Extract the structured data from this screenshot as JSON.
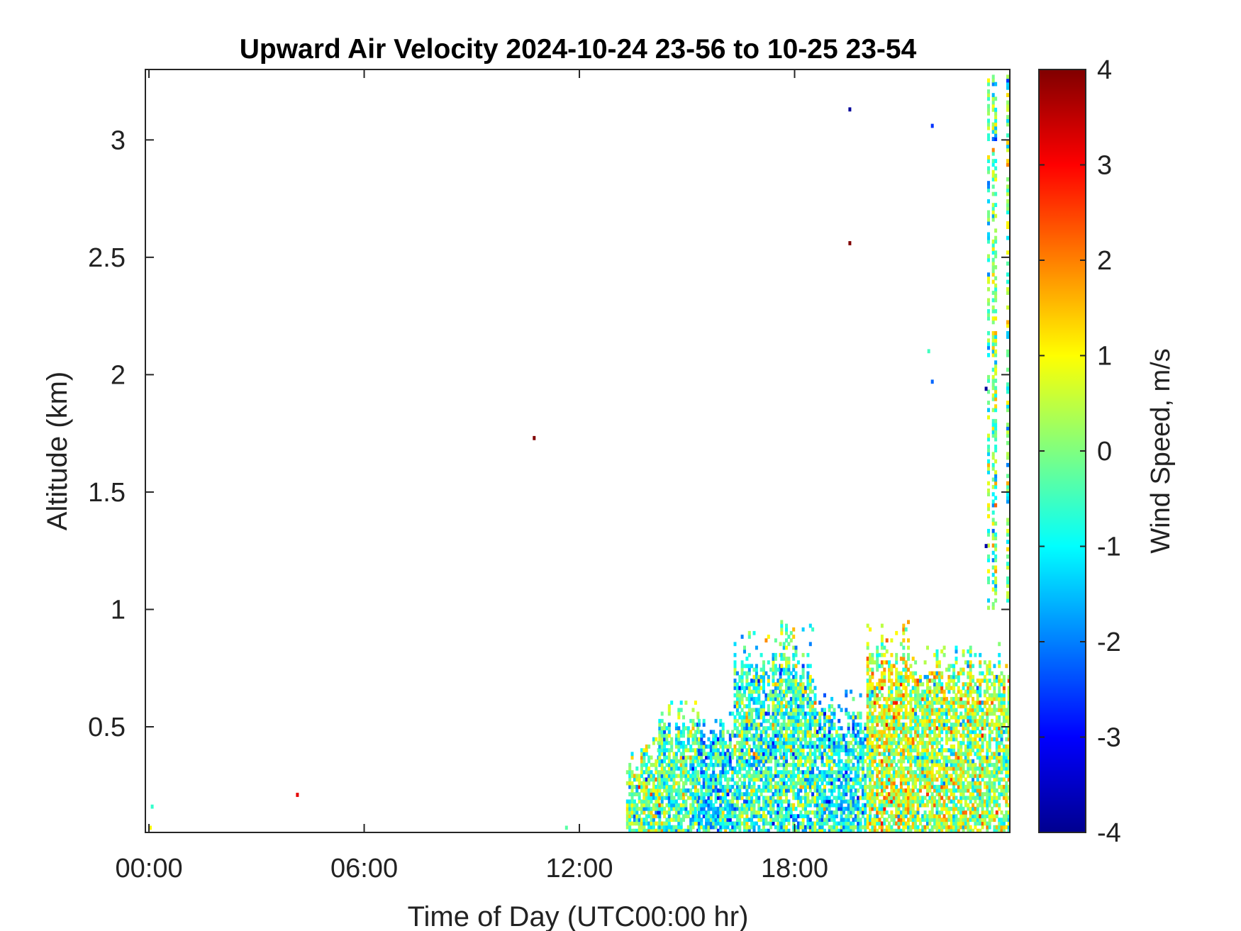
{
  "chart_data": {
    "type": "heatmap",
    "title": "Upward Air Velocity 2024-10-24 23-56 to 10-25 23-54",
    "xlabel": "Time of Day (UTC00:00 hr)",
    "ylabel": "Altitude (km)",
    "colorbar_label": "Wind Speed, m/s",
    "xlim": [
      -0.1,
      24.0
    ],
    "ylim": [
      0.05,
      3.3
    ],
    "clim": [
      -4,
      4
    ],
    "colormap": "jet",
    "x_ticks": [
      {
        "value": 0,
        "label": "00:00"
      },
      {
        "value": 6,
        "label": "06:00"
      },
      {
        "value": 12,
        "label": "12:00"
      },
      {
        "value": 18,
        "label": "18:00"
      }
    ],
    "y_ticks": [
      {
        "value": 0.5,
        "label": "0.5"
      },
      {
        "value": 1,
        "label": "1"
      },
      {
        "value": 1.5,
        "label": "1.5"
      },
      {
        "value": 2,
        "label": "2"
      },
      {
        "value": 2.5,
        "label": "2.5"
      },
      {
        "value": 3,
        "label": "3"
      }
    ],
    "colorbar_ticks": [
      {
        "value": 4,
        "label": "4"
      },
      {
        "value": 3,
        "label": "3"
      },
      {
        "value": 2,
        "label": "2"
      },
      {
        "value": 1,
        "label": "1"
      },
      {
        "value": 0,
        "label": "0"
      },
      {
        "value": -1,
        "label": "-1"
      },
      {
        "value": -2,
        "label": "-2"
      },
      {
        "value": -3,
        "label": "-3"
      },
      {
        "value": -4,
        "label": "-4"
      }
    ],
    "grid": false,
    "isolated_points": [
      {
        "time": 0.0,
        "altitude": 0.07,
        "value": 1.0
      },
      {
        "time": 0.05,
        "altitude": 0.16,
        "value": -0.6
      },
      {
        "time": 4.1,
        "altitude": 0.21,
        "value": 3.2
      },
      {
        "time": 10.7,
        "altitude": 1.73,
        "value": 4.0
      },
      {
        "time": 11.6,
        "altitude": 0.07,
        "value": -0.3
      },
      {
        "time": 19.5,
        "altitude": 3.13,
        "value": -3.8
      },
      {
        "time": 19.5,
        "altitude": 2.56,
        "value": 4.0
      },
      {
        "time": 21.7,
        "altitude": 2.1,
        "value": -0.5
      },
      {
        "time": 21.8,
        "altitude": 1.97,
        "value": -2.2
      },
      {
        "time": 21.8,
        "altitude": 3.06,
        "value": -2.6
      },
      {
        "time": 23.3,
        "altitude": 1.94,
        "value": -3.8
      },
      {
        "time": 23.3,
        "altitude": 1.27,
        "value": -3.7
      }
    ],
    "regions": [
      {
        "time_start": 13.3,
        "time_end": 14.2,
        "altitude_top": 0.45,
        "mean_value": 0.0
      },
      {
        "time_start": 14.2,
        "time_end": 15.3,
        "altitude_top": 0.6,
        "mean_value": -0.4
      },
      {
        "time_start": 15.3,
        "time_end": 16.3,
        "altitude_top": 0.55,
        "mean_value": -1.0
      },
      {
        "time_start": 16.3,
        "time_end": 17.6,
        "altitude_top": 0.9,
        "mean_value": -0.6
      },
      {
        "time_start": 17.6,
        "time_end": 18.6,
        "altitude_top": 0.95,
        "mean_value": -0.5
      },
      {
        "time_start": 18.6,
        "time_end": 20.0,
        "altitude_top": 0.65,
        "mean_value": -0.9
      },
      {
        "time_start": 20.0,
        "time_end": 21.2,
        "altitude_top": 0.95,
        "mean_value": 0.6
      },
      {
        "time_start": 21.2,
        "time_end": 22.6,
        "altitude_top": 0.85,
        "mean_value": 0.3
      },
      {
        "time_start": 22.6,
        "time_end": 24.0,
        "altitude_top": 0.85,
        "mean_value": 0.2
      },
      {
        "time_start": 22.7,
        "time_end": 24.0,
        "altitude_top": 3.27,
        "altitude_bottom": 1.0,
        "mean_value": -0.1
      }
    ]
  }
}
